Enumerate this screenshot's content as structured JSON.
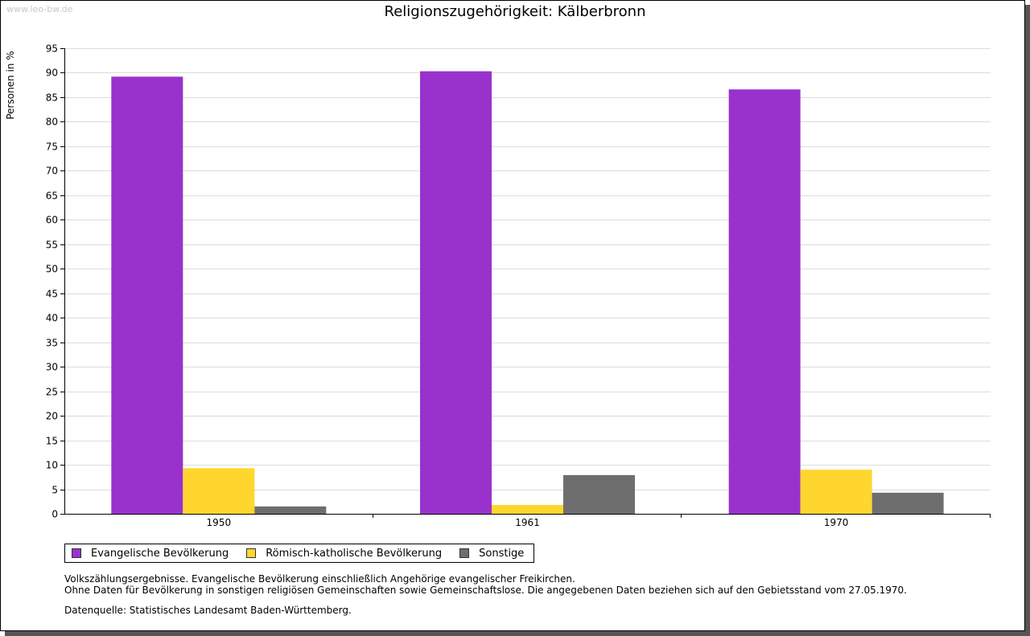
{
  "watermark": "www.leo-bw.de",
  "chart_data": {
    "type": "bar",
    "title": "Religionszugehörigkeit: Kälberbronn",
    "ylabel": "Personen in %",
    "xlabel": "",
    "ylim": [
      0,
      95
    ],
    "yticks": [
      0,
      5,
      10,
      15,
      20,
      25,
      30,
      35,
      40,
      45,
      50,
      55,
      60,
      65,
      70,
      75,
      80,
      85,
      90,
      95
    ],
    "grid": true,
    "categories": [
      "1950",
      "1961",
      "1970"
    ],
    "series": [
      {
        "name": "Evangelische Bevölkerung",
        "color": "#9932CC",
        "values": [
          89.2,
          90.3,
          86.6
        ]
      },
      {
        "name": "Römisch-katholische Bevölkerung",
        "color": "#FFD62E",
        "values": [
          9.3,
          1.8,
          9.0
        ]
      },
      {
        "name": "Sonstige",
        "color": "#6E6E6E",
        "values": [
          1.5,
          7.9,
          4.3
        ]
      }
    ],
    "legend_position": "bottom-left"
  },
  "notes": {
    "line1": "Volkszählungsergebnisse. Evangelische Bevölkerung einschließlich Angehörige evangelischer Freikirchen.",
    "line2": "Ohne Daten für Bevölkerung in sonstigen religiösen Gemeinschaften sowie Gemeinschaftslose. Die angegebenen Daten beziehen sich auf den Gebietsstand vom 27.05.1970.",
    "source": "Datenquelle: Statistisches Landesamt Baden-Württemberg."
  }
}
